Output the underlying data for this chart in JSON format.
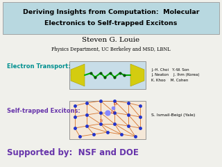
{
  "title_line1": "Deriving Insights from Computation:  Molecular",
  "title_line2": "Electronics to Self-trapped Excitons",
  "title_bg_color": "#b8d8e0",
  "title_text_color": "#000000",
  "author": "Steven G. Louie",
  "affiliation": "Physics Department, UC Berkeley and MSD, LBNL",
  "section1_label": "Electron Transport:",
  "section1_color": "#009090",
  "section2_label": "Self-trapped Excitons:",
  "section2_color": "#6633aa",
  "collaborators1": "J.-H. Choi   Y.-W. Son\nJ. Neaton    J. Ihm (Korea)\nK. Khoo    M. Cohen",
  "collaborators2": "S. Ismail-Beigi (Yale)",
  "support": "Supported by:  NSF and DOE",
  "support_color": "#6633aa",
  "bg_color": "#f0f0eb",
  "image1_bg": "#c8dde8",
  "image2_bg": "#f5e8d8"
}
